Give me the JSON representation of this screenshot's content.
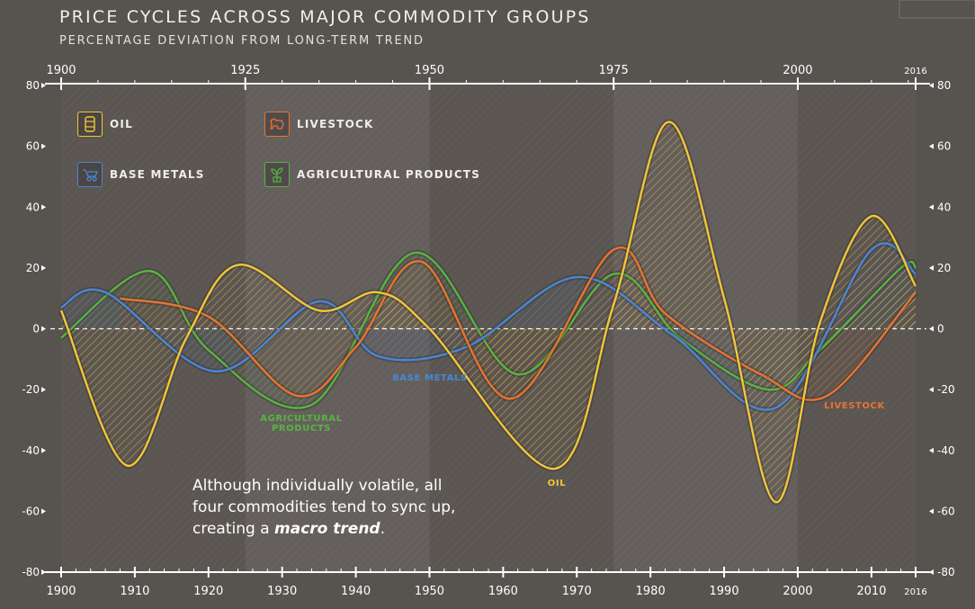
{
  "title": "PRICE CYCLES ACROSS MAJOR COMMODITY GROUPS",
  "subtitle": "PERCENTAGE DEVIATION FROM LONG-TERM TREND",
  "annotation": {
    "line1": "Although individually volatile, all",
    "line2": "four commodities tend to sync up,",
    "line3_prefix": "creating a ",
    "line3_bold": "macro trend",
    "line3_suffix": "."
  },
  "legend": [
    {
      "label": "OIL",
      "color": "#f3c63a",
      "icon": "oil-barrel-icon"
    },
    {
      "label": "LIVESTOCK",
      "color": "#e9742f",
      "icon": "livestock-icon"
    },
    {
      "label": "BASE METALS",
      "color": "#4a86d6",
      "icon": "wheelbarrow-icon"
    },
    {
      "label": "AGRICULTURAL PRODUCTS",
      "color": "#59b343",
      "icon": "plant-icon"
    }
  ],
  "chart_data": {
    "type": "line",
    "xlim": [
      1900,
      2016
    ],
    "ylim": [
      -80,
      80
    ],
    "x_ticks_bottom": [
      "1900",
      "1910",
      "1920",
      "1930",
      "1940",
      "1950",
      "1960",
      "1970",
      "1980",
      "1990",
      "2000",
      "2010",
      "2016"
    ],
    "x_ticks_top": [
      "1900",
      "1925",
      "1950",
      "1975",
      "2000",
      "2016"
    ],
    "y_ticks": [
      "80",
      "60",
      "40",
      "20",
      "0",
      "-20",
      "-40",
      "-60",
      "-80"
    ],
    "zero_line": 0,
    "series": [
      {
        "name": "OIL",
        "color": "#f3c63a",
        "x": [
          1900,
          1909,
          1917,
          1924,
          1935,
          1943,
          1950,
          1967,
          1975,
          1982.5,
          1990,
          1997,
          2003,
          2010,
          2016
        ],
        "y": [
          6,
          -45,
          -3,
          21,
          6,
          12,
          0,
          -46,
          8,
          68,
          10,
          -57,
          2,
          37,
          14
        ]
      },
      {
        "name": "LIVESTOCK",
        "color": "#e9742f",
        "x": [
          1908,
          1920,
          1932,
          1940,
          1949,
          1961,
          1975,
          1982,
          1995,
          2004,
          2016
        ],
        "y": [
          10,
          4,
          -22,
          -6,
          22,
          -23,
          26,
          5,
          -15,
          -22,
          12
        ]
      },
      {
        "name": "BASE METALS",
        "color": "#4a86d6",
        "x": [
          1900,
          1906,
          1921,
          1935,
          1943,
          1955,
          1970,
          1983,
          1997,
          2010,
          2016
        ],
        "y": [
          7,
          12,
          -14,
          9,
          -9,
          -6,
          17,
          -2,
          -26,
          26,
          18
        ]
      },
      {
        "name": "AGRICULTURAL PRODUCTS",
        "color": "#59b343",
        "x": [
          1900,
          1912,
          1920,
          1934,
          1948,
          1962,
          1975,
          1984,
          1996,
          2003,
          2014,
          2016
        ],
        "y": [
          -3,
          19,
          -7,
          -25,
          25,
          -15,
          18,
          -3,
          -20,
          -7,
          20,
          20
        ]
      }
    ],
    "annotations": [
      {
        "text": "AGRICULTURAL\nPRODUCTS",
        "color": "#59b343"
      },
      {
        "text": "BASE METALS",
        "color": "#4a86d6"
      },
      {
        "text": "OIL",
        "color": "#f3c63a"
      },
      {
        "text": "LIVESTOCK",
        "color": "#e9742f"
      }
    ]
  }
}
